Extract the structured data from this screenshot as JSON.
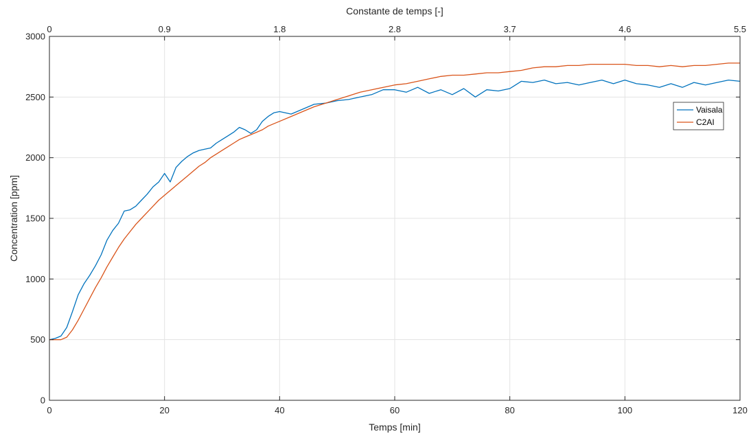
{
  "chart_data": {
    "type": "line",
    "xlabel": "Temps [min]",
    "ylabel": "Concentration [ppm]",
    "x2label": "Constante de temps [-]",
    "xlim": [
      0,
      120
    ],
    "ylim": [
      0,
      3000
    ],
    "xticks": [
      0,
      20,
      40,
      60,
      80,
      100,
      120
    ],
    "xtick_labels": [
      "0",
      "20",
      "40",
      "60",
      "80",
      "100",
      "120"
    ],
    "yticks": [
      0,
      500,
      1000,
      1500,
      2000,
      2500,
      3000
    ],
    "ytick_labels": [
      "0",
      "500",
      "1000",
      "1500",
      "2000",
      "2500",
      "3000"
    ],
    "x2ticks": [
      0,
      20,
      40,
      60,
      80,
      100,
      120
    ],
    "x2tick_labels": [
      "0",
      "0.9",
      "1.8",
      "2.8",
      "3.7",
      "4.6",
      "5.5"
    ],
    "grid": true,
    "legend_position": "upper-right",
    "series": [
      {
        "name": "Vaisala",
        "color": "#0072BD",
        "x": [
          0,
          1,
          2,
          3,
          4,
          5,
          6,
          7,
          8,
          9,
          10,
          11,
          12,
          13,
          14,
          15,
          16,
          17,
          18,
          19,
          20,
          21,
          22,
          23,
          24,
          25,
          26,
          27,
          28,
          29,
          30,
          31,
          32,
          33,
          34,
          35,
          36,
          37,
          38,
          39,
          40,
          42,
          44,
          46,
          48,
          50,
          52,
          54,
          56,
          58,
          60,
          62,
          64,
          66,
          68,
          70,
          72,
          74,
          76,
          78,
          80,
          82,
          84,
          86,
          88,
          90,
          92,
          94,
          96,
          98,
          100,
          102,
          104,
          106,
          108,
          110,
          112,
          114,
          116,
          118,
          120
        ],
        "y": [
          500,
          510,
          530,
          600,
          730,
          870,
          960,
          1030,
          1110,
          1200,
          1320,
          1400,
          1460,
          1560,
          1570,
          1600,
          1650,
          1700,
          1760,
          1800,
          1870,
          1800,
          1920,
          1970,
          2010,
          2040,
          2060,
          2070,
          2080,
          2120,
          2150,
          2180,
          2210,
          2250,
          2230,
          2200,
          2230,
          2300,
          2340,
          2370,
          2380,
          2360,
          2400,
          2440,
          2450,
          2470,
          2480,
          2500,
          2520,
          2560,
          2560,
          2540,
          2580,
          2530,
          2560,
          2520,
          2570,
          2500,
          2560,
          2550,
          2570,
          2630,
          2620,
          2640,
          2610,
          2620,
          2600,
          2620,
          2640,
          2610,
          2640,
          2610,
          2600,
          2580,
          2610,
          2580,
          2620,
          2600,
          2620,
          2640,
          2630
        ]
      },
      {
        "name": "C2AI",
        "color": "#D95319",
        "x": [
          0,
          1,
          2,
          3,
          4,
          5,
          6,
          7,
          8,
          9,
          10,
          11,
          12,
          13,
          14,
          15,
          16,
          17,
          18,
          19,
          20,
          21,
          22,
          23,
          24,
          25,
          26,
          27,
          28,
          29,
          30,
          31,
          32,
          33,
          34,
          35,
          36,
          37,
          38,
          39,
          40,
          42,
          44,
          46,
          48,
          50,
          52,
          54,
          56,
          58,
          60,
          62,
          64,
          66,
          68,
          70,
          72,
          74,
          76,
          78,
          80,
          82,
          84,
          86,
          88,
          90,
          92,
          94,
          96,
          98,
          100,
          102,
          104,
          106,
          108,
          110,
          112,
          114,
          116,
          118,
          120
        ],
        "y": [
          500,
          500,
          500,
          520,
          580,
          660,
          750,
          840,
          930,
          1010,
          1100,
          1180,
          1260,
          1330,
          1390,
          1450,
          1500,
          1550,
          1600,
          1650,
          1690,
          1730,
          1770,
          1810,
          1850,
          1890,
          1930,
          1960,
          2000,
          2030,
          2060,
          2090,
          2120,
          2150,
          2170,
          2190,
          2210,
          2230,
          2260,
          2280,
          2300,
          2340,
          2380,
          2420,
          2450,
          2480,
          2510,
          2540,
          2560,
          2580,
          2600,
          2610,
          2630,
          2650,
          2670,
          2680,
          2680,
          2690,
          2700,
          2700,
          2710,
          2720,
          2740,
          2750,
          2750,
          2760,
          2760,
          2770,
          2770,
          2770,
          2770,
          2760,
          2760,
          2750,
          2760,
          2750,
          2760,
          2760,
          2770,
          2780,
          2780
        ]
      }
    ]
  }
}
